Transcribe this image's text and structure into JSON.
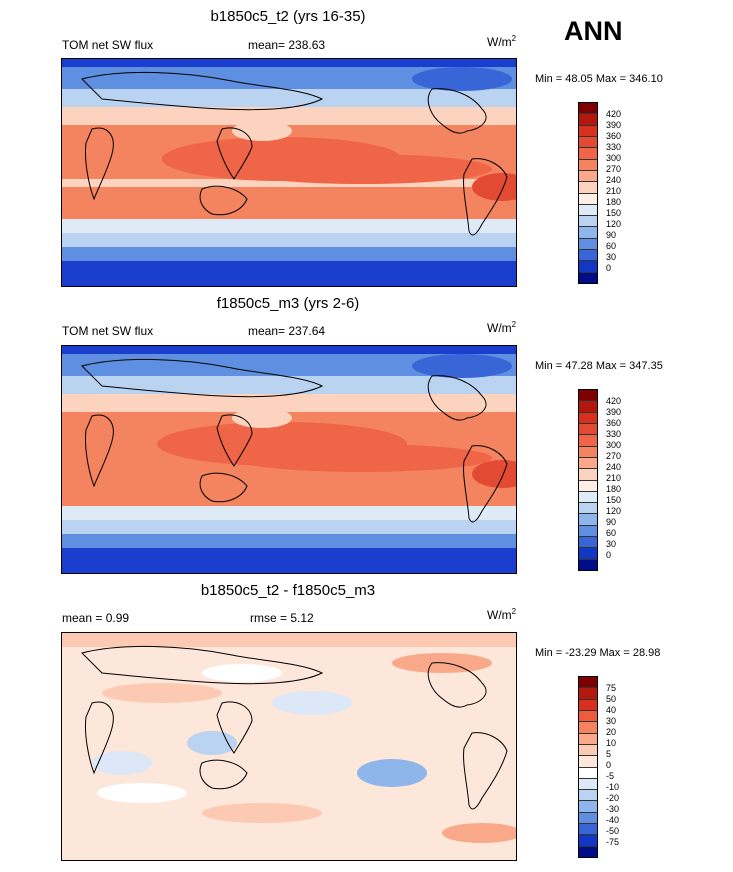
{
  "season": "ANN",
  "panels": [
    {
      "title": "b1850c5_t2 (yrs 16-35)",
      "left_label": "TOM net SW flux",
      "center_label": "mean= 238.63",
      "units_base": "W/m",
      "units_sup": "2",
      "minmax": "Min =  48.05 Max = 346.10",
      "ticks": [
        "420",
        "390",
        "360",
        "330",
        "300",
        "270",
        "240",
        "210",
        "180",
        "150",
        "120",
        "90",
        "60",
        "30",
        "0"
      ],
      "kind": "abs"
    },
    {
      "title": "f1850c5_m3 (yrs 2-6)",
      "left_label": "TOM net SW flux",
      "center_label": "mean= 237.64",
      "units_base": "W/m",
      "units_sup": "2",
      "minmax": "Min =  47.28 Max = 347.35",
      "ticks": [
        "420",
        "390",
        "360",
        "330",
        "300",
        "270",
        "240",
        "210",
        "180",
        "150",
        "120",
        "90",
        "60",
        "30",
        "0"
      ],
      "kind": "abs"
    },
    {
      "title": "b1850c5_t2 - f1850c5_m3",
      "left_label": "mean =   0.99",
      "center_label": "rmse =   5.12",
      "units_base": "W/m",
      "units_sup": "2",
      "minmax": "Min = -23.29 Max =  28.98",
      "ticks": [
        "75",
        "50",
        "40",
        "30",
        "20",
        "10",
        "5",
        "0",
        "-5",
        "-10",
        "-20",
        "-30",
        "-40",
        "-50",
        "-75"
      ],
      "kind": "diff"
    }
  ],
  "colors": {
    "abs_scale": [
      "#7f0000",
      "#b2180e",
      "#d7301f",
      "#e34a33",
      "#ef6548",
      "#f4845f",
      "#f9a98a",
      "#fcd3bf",
      "#fdeee6",
      "#deebf7",
      "#b9d3f0",
      "#8fb6ea",
      "#5f8fe0",
      "#3866d6",
      "#1237c4",
      "#000c8a"
    ],
    "diff_scale": [
      "#7f0000",
      "#b2180e",
      "#d7301f",
      "#ef5b3b",
      "#f4845f",
      "#f9a98a",
      "#fcc9b2",
      "#fde6da",
      "#ffffff",
      "#dce8f8",
      "#b9d3f0",
      "#8fb6ea",
      "#5f8fe0",
      "#3866d6",
      "#1237c4",
      "#000c8a"
    ]
  }
}
